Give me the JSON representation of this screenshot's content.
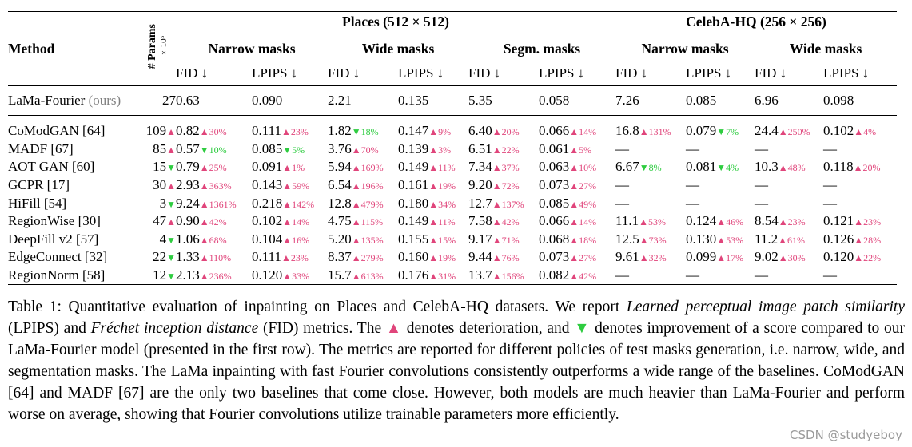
{
  "table": {
    "group_places": "Places (512 × 512)",
    "group_celeba": "CelebA-HQ (256 × 256)",
    "sub_narrow": "Narrow masks",
    "sub_wide": "Wide masks",
    "sub_segm": "Segm. masks",
    "sub_narrow_c": "Narrow masks",
    "sub_wide_c": "Wide masks",
    "method_header": "Method",
    "params_header": "# Params",
    "params_unit": "×10⁶",
    "fid": "FID ↓",
    "lpips": "LPIPS ↓",
    "ours": {
      "name": "LaMa-Fourier",
      "tag": "(ours)",
      "params": "27",
      "values": [
        "0.63",
        "0.090",
        "2.21",
        "0.135",
        "5.35",
        "0.058",
        "7.26",
        "0.085",
        "6.96",
        "0.098"
      ]
    },
    "rows": [
      {
        "name": "CoModGAN [64]",
        "params": "109",
        "pdir": "▲",
        "cells": [
          [
            "0.82",
            "▲30%",
            "d"
          ],
          [
            "0.111",
            "▲23%",
            "d"
          ],
          [
            "1.82",
            "▼18%",
            "u"
          ],
          [
            "0.147",
            "▲9%",
            "d"
          ],
          [
            "6.40",
            "▲20%",
            "d"
          ],
          [
            "0.066",
            "▲14%",
            "d"
          ],
          [
            "16.8",
            "▲131%",
            "d"
          ],
          [
            "0.079",
            "▼7%",
            "u"
          ],
          [
            "24.4",
            "▲250%",
            "d"
          ],
          [
            "0.102",
            "▲4%",
            "d"
          ]
        ]
      },
      {
        "name": "MADF [67]",
        "params": "85",
        "pdir": "▲",
        "cells": [
          [
            "0.57",
            "▼10%",
            "u"
          ],
          [
            "0.085",
            "▼5%",
            "u"
          ],
          [
            "3.76",
            "▲70%",
            "d"
          ],
          [
            "0.139",
            "▲3%",
            "d"
          ],
          [
            "6.51",
            "▲22%",
            "d"
          ],
          [
            "0.061",
            "▲5%",
            "d"
          ],
          [
            "—",
            "",
            ""
          ],
          [
            "—",
            "",
            ""
          ],
          [
            "—",
            "",
            ""
          ],
          [
            "—",
            "",
            ""
          ]
        ]
      },
      {
        "name": "AOT GAN [60]",
        "params": "15",
        "pdir": "▼",
        "cells": [
          [
            "0.79",
            "▲25%",
            "d"
          ],
          [
            "0.091",
            "▲1%",
            "d"
          ],
          [
            "5.94",
            "▲169%",
            "d"
          ],
          [
            "0.149",
            "▲11%",
            "d"
          ],
          [
            "7.34",
            "▲37%",
            "d"
          ],
          [
            "0.063",
            "▲10%",
            "d"
          ],
          [
            "6.67",
            "▼8%",
            "u"
          ],
          [
            "0.081",
            "▼4%",
            "u"
          ],
          [
            "10.3",
            "▲48%",
            "d"
          ],
          [
            "0.118",
            "▲20%",
            "d"
          ]
        ]
      },
      {
        "name": "GCPR [17]",
        "params": "30",
        "pdir": "▲",
        "cells": [
          [
            "2.93",
            "▲363%",
            "d"
          ],
          [
            "0.143",
            "▲59%",
            "d"
          ],
          [
            "6.54",
            "▲196%",
            "d"
          ],
          [
            "0.161",
            "▲19%",
            "d"
          ],
          [
            "9.20",
            "▲72%",
            "d"
          ],
          [
            "0.073",
            "▲27%",
            "d"
          ],
          [
            "—",
            "",
            ""
          ],
          [
            "—",
            "",
            ""
          ],
          [
            "—",
            "",
            ""
          ],
          [
            "—",
            "",
            ""
          ]
        ]
      },
      {
        "name": "HiFill [54]",
        "params": "3",
        "pdir": "▼",
        "cells": [
          [
            "9.24",
            "▲1361%",
            "d"
          ],
          [
            "0.218",
            "▲142%",
            "d"
          ],
          [
            "12.8",
            "▲479%",
            "d"
          ],
          [
            "0.180",
            "▲34%",
            "d"
          ],
          [
            "12.7",
            "▲137%",
            "d"
          ],
          [
            "0.085",
            "▲49%",
            "d"
          ],
          [
            "—",
            "",
            ""
          ],
          [
            "—",
            "",
            ""
          ],
          [
            "—",
            "",
            ""
          ],
          [
            "—",
            "",
            ""
          ]
        ]
      },
      {
        "name": "RegionWise [30]",
        "params": "47",
        "pdir": "▲",
        "cells": [
          [
            "0.90",
            "▲42%",
            "d"
          ],
          [
            "0.102",
            "▲14%",
            "d"
          ],
          [
            "4.75",
            "▲115%",
            "d"
          ],
          [
            "0.149",
            "▲11%",
            "d"
          ],
          [
            "7.58",
            "▲42%",
            "d"
          ],
          [
            "0.066",
            "▲14%",
            "d"
          ],
          [
            "11.1",
            "▲53%",
            "d"
          ],
          [
            "0.124",
            "▲46%",
            "d"
          ],
          [
            "8.54",
            "▲23%",
            "d"
          ],
          [
            "0.121",
            "▲23%",
            "d"
          ]
        ]
      },
      {
        "name": "DeepFill v2 [57]",
        "params": "4",
        "pdir": "▼",
        "cells": [
          [
            "1.06",
            "▲68%",
            "d"
          ],
          [
            "0.104",
            "▲16%",
            "d"
          ],
          [
            "5.20",
            "▲135%",
            "d"
          ],
          [
            "0.155",
            "▲15%",
            "d"
          ],
          [
            "9.17",
            "▲71%",
            "d"
          ],
          [
            "0.068",
            "▲18%",
            "d"
          ],
          [
            "12.5",
            "▲73%",
            "d"
          ],
          [
            "0.130",
            "▲53%",
            "d"
          ],
          [
            "11.2",
            "▲61%",
            "d"
          ],
          [
            "0.126",
            "▲28%",
            "d"
          ]
        ]
      },
      {
        "name": "EdgeConnect [32]",
        "params": "22",
        "pdir": "▼",
        "cells": [
          [
            "1.33",
            "▲110%",
            "d"
          ],
          [
            "0.111",
            "▲23%",
            "d"
          ],
          [
            "8.37",
            "▲279%",
            "d"
          ],
          [
            "0.160",
            "▲19%",
            "d"
          ],
          [
            "9.44",
            "▲76%",
            "d"
          ],
          [
            "0.073",
            "▲27%",
            "d"
          ],
          [
            "9.61",
            "▲32%",
            "d"
          ],
          [
            "0.099",
            "▲17%",
            "d"
          ],
          [
            "9.02",
            "▲30%",
            "d"
          ],
          [
            "0.120",
            "▲22%",
            "d"
          ]
        ]
      },
      {
        "name": "RegionNorm [58]",
        "params": "12",
        "pdir": "▼",
        "cells": [
          [
            "2.13",
            "▲236%",
            "d"
          ],
          [
            "0.120",
            "▲33%",
            "d"
          ],
          [
            "15.7",
            "▲613%",
            "d"
          ],
          [
            "0.176",
            "▲31%",
            "d"
          ],
          [
            "13.7",
            "▲156%",
            "d"
          ],
          [
            "0.082",
            "▲42%",
            "d"
          ],
          [
            "—",
            "",
            ""
          ],
          [
            "—",
            "",
            ""
          ],
          [
            "—",
            "",
            ""
          ],
          [
            "—",
            "",
            ""
          ]
        ]
      }
    ]
  },
  "caption": {
    "p1": "Table 1: Quantitative evaluation of inpainting on Places and CelebA-HQ datasets. We report ",
    "i1": "Learned perceptual image patch similarity",
    "p2": " (LPIPS) and ",
    "i2": "Fréchet inception distance",
    "p3": " (FID) metrics. The ",
    "sym_up": "▲",
    "p4": " denotes deterioration, and ",
    "sym_dn": "▼",
    "p5": " denotes improvement of a score compared to our LaMa-Fourier model (presented in the first row). The metrics are reported for different policies of test masks generation, i.e. narrow, wide, and segmentation masks. The LaMa inpainting with fast Fourier convolutions consistently outperforms a wide range of the baselines. CoModGAN [64] and MADF [67] are the only two baselines that come close. However, both models are much heavier than LaMa-Fourier and perform worse on average, showing that Fourier convolutions utilize trainable parameters more efficiently."
  },
  "watermark": "CSDN @studyeboy",
  "colors": {
    "deterioration": "#e0457b",
    "improvement": "#2ecc40"
  }
}
